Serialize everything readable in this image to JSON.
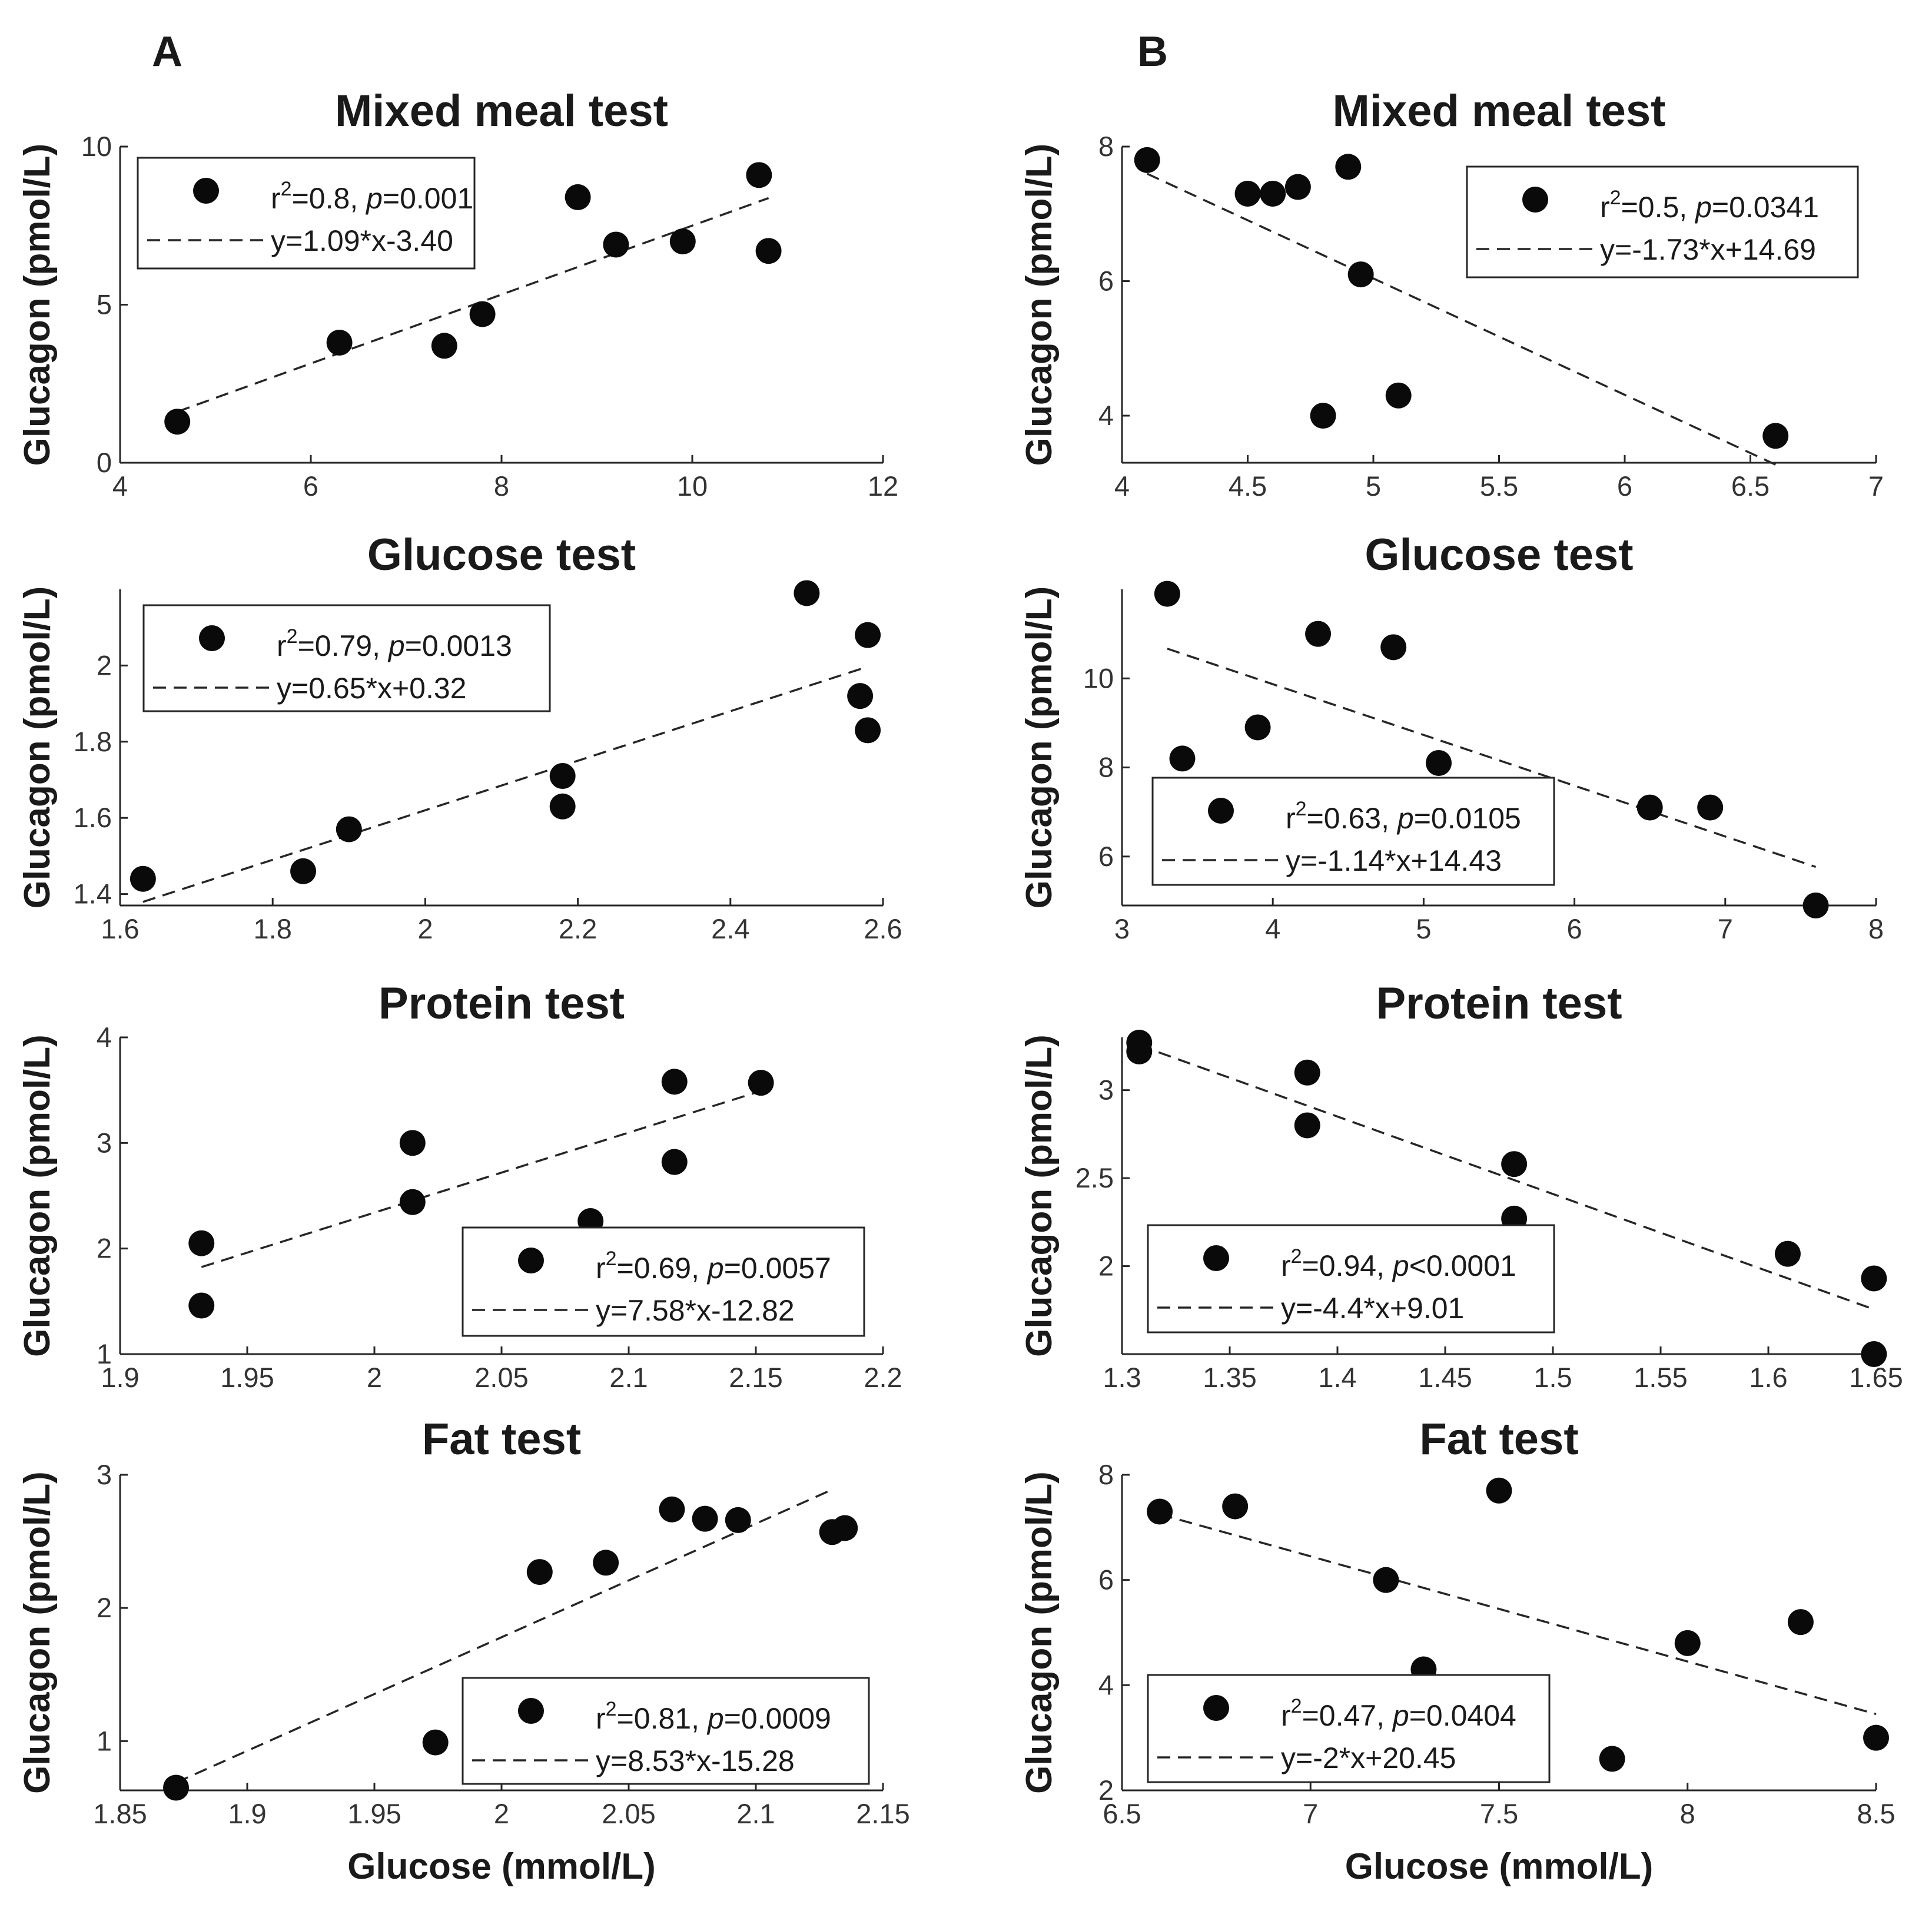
{
  "figure": {
    "panel_labels": [
      "A",
      "B"
    ],
    "x_axis_label": "Glucose (mmol/L)",
    "y_axis_label": "Glucagon (pmol/L)"
  },
  "chart_data": [
    {
      "id": "A1",
      "type": "scatter",
      "panel": "A",
      "title": "Mixed meal test",
      "xlabel": "",
      "ylabel": "Glucagon (pmol/L)",
      "xlim": [
        4,
        12
      ],
      "ylim": [
        0,
        10
      ],
      "xticks": [
        4,
        6,
        8,
        10,
        12
      ],
      "xtick_labels": [
        "4",
        "6",
        "8",
        "10",
        "12"
      ],
      "yticks": [
        0,
        5,
        10
      ],
      "ytick_labels": [
        "0",
        "5",
        "10"
      ],
      "points": [
        [
          4.6,
          1.3
        ],
        [
          6.3,
          3.8
        ],
        [
          7.4,
          3.7
        ],
        [
          7.8,
          4.7
        ],
        [
          8.8,
          8.4
        ],
        [
          9.2,
          6.9
        ],
        [
          9.9,
          7.0
        ],
        [
          10.7,
          9.1
        ],
        [
          10.8,
          6.7
        ]
      ],
      "fit": {
        "slope": 1.09,
        "intercept": -3.4,
        "x_range": [
          4.6,
          10.8
        ]
      },
      "legend": {
        "position": "top-left",
        "r2_prefix": "r",
        "r2_sup": "2",
        "r2_value": "=0.8, ",
        "p_prefix": "p",
        "p_value": "=0.001",
        "equation": "y=1.09*x-3.40"
      }
    },
    {
      "id": "A2",
      "type": "scatter",
      "panel": "A",
      "title": "Glucose test",
      "xlabel": "",
      "ylabel": "Glucagon (pmol/L)",
      "xlim": [
        1.6,
        2.6
      ],
      "ylim": [
        1.37,
        2.2
      ],
      "xticks": [
        1.6,
        1.8,
        2.0,
        2.2,
        2.4,
        2.6
      ],
      "xtick_labels": [
        "1.6",
        "1.8",
        "2",
        "2.2",
        "2.4",
        "2.6"
      ],
      "yticks": [
        1.4,
        1.6,
        1.8,
        2.0
      ],
      "ytick_labels": [
        "1.4",
        "1.6",
        "1.8",
        "2"
      ],
      "points": [
        [
          1.63,
          1.44
        ],
        [
          1.84,
          1.46
        ],
        [
          1.9,
          1.57
        ],
        [
          2.18,
          1.71
        ],
        [
          2.18,
          1.63
        ],
        [
          2.5,
          2.19
        ],
        [
          2.58,
          2.08
        ],
        [
          2.57,
          1.92
        ],
        [
          2.58,
          1.83
        ]
      ],
      "fit": {
        "slope": 0.65,
        "intercept": 0.32,
        "x_range": [
          1.63,
          2.58
        ]
      },
      "legend": {
        "position": "top-left",
        "r2_prefix": "r",
        "r2_sup": "2",
        "r2_value": "=0.79, ",
        "p_prefix": "p",
        "p_value": "=0.0013",
        "equation": "y=0.65*x+0.32"
      }
    },
    {
      "id": "A3",
      "type": "scatter",
      "panel": "A",
      "title": "Protein test",
      "xlabel": "",
      "ylabel": "Glucagon (pmol/L)",
      "xlim": [
        1.9,
        2.2
      ],
      "ylim": [
        1,
        4
      ],
      "xticks": [
        1.9,
        1.95,
        2.0,
        2.05,
        2.1,
        2.15,
        2.2
      ],
      "xtick_labels": [
        "1.9",
        "1.95",
        "2",
        "2.05",
        "2.1",
        "2.15",
        "2.2"
      ],
      "yticks": [
        1,
        2,
        3,
        4
      ],
      "ytick_labels": [
        "1",
        "2",
        "3",
        "4"
      ],
      "points": [
        [
          1.932,
          2.05
        ],
        [
          1.932,
          1.46
        ],
        [
          2.015,
          3.0
        ],
        [
          2.015,
          2.44
        ],
        [
          2.085,
          2.26
        ],
        [
          2.118,
          3.58
        ],
        [
          2.118,
          2.82
        ],
        [
          2.152,
          3.57
        ]
      ],
      "fit": {
        "slope": 7.58,
        "intercept": -12.82,
        "x_range": [
          1.932,
          2.152
        ]
      },
      "legend": {
        "position": "bottom-right",
        "r2_prefix": "r",
        "r2_sup": "2",
        "r2_value": "=0.69, ",
        "p_prefix": "p",
        "p_value": "=0.0057",
        "equation": "y=7.58*x-12.82"
      }
    },
    {
      "id": "A4",
      "type": "scatter",
      "panel": "A",
      "title": "Fat test",
      "xlabel": "Glucose (mmol/L)",
      "ylabel": "Glucagon (pmol/L)",
      "xlim": [
        1.85,
        2.15
      ],
      "ylim": [
        0.63,
        3
      ],
      "xticks": [
        1.85,
        1.9,
        1.95,
        2.0,
        2.05,
        2.1,
        2.15
      ],
      "xtick_labels": [
        "1.85",
        "1.9",
        "1.95",
        "2",
        "2.05",
        "2.1",
        "2.15"
      ],
      "yticks": [
        1,
        2,
        3
      ],
      "ytick_labels": [
        "1",
        "2",
        "3"
      ],
      "points": [
        [
          1.872,
          0.65
        ],
        [
          1.974,
          0.99
        ],
        [
          2.015,
          2.27
        ],
        [
          2.041,
          2.34
        ],
        [
          2.067,
          2.74
        ],
        [
          2.08,
          2.67
        ],
        [
          2.093,
          2.66
        ],
        [
          2.13,
          2.57
        ],
        [
          2.135,
          2.6
        ]
      ],
      "fit": {
        "slope": 8.53,
        "intercept": -15.28,
        "x_range": [
          1.872,
          2.13
        ]
      },
      "legend": {
        "position": "bottom-right",
        "r2_prefix": "r",
        "r2_sup": "2",
        "r2_value": "=0.81, ",
        "p_prefix": "p",
        "p_value": "=0.0009",
        "equation": "y=8.53*x-15.28"
      }
    },
    {
      "id": "B1",
      "type": "scatter",
      "panel": "B",
      "title": "Mixed meal test",
      "xlabel": "",
      "ylabel": "Glucagon (pmol/L)",
      "xlim": [
        4,
        7
      ],
      "ylim": [
        3.3,
        8
      ],
      "xticks": [
        4,
        4.5,
        5,
        5.5,
        6,
        6.5,
        7
      ],
      "xtick_labels": [
        "4",
        "4.5",
        "5",
        "5.5",
        "6",
        "6.5",
        "7"
      ],
      "yticks": [
        4,
        6,
        8
      ],
      "ytick_labels": [
        "4",
        "6",
        "8"
      ],
      "points": [
        [
          4.1,
          7.8
        ],
        [
          4.5,
          7.3
        ],
        [
          4.6,
          7.3
        ],
        [
          4.7,
          7.4
        ],
        [
          4.9,
          7.7
        ],
        [
          4.95,
          6.1
        ],
        [
          4.8,
          4.0
        ],
        [
          5.1,
          4.3
        ],
        [
          6.6,
          3.7
        ]
      ],
      "fit": {
        "slope": -1.73,
        "intercept": 14.69,
        "x_range": [
          4.1,
          6.6
        ]
      },
      "legend": {
        "position": "top-right",
        "r2_prefix": "r",
        "r2_sup": "2",
        "r2_value": "=0.5, ",
        "p_prefix": "p",
        "p_value": "=0.0341",
        "equation": "y=-1.73*x+14.69"
      }
    },
    {
      "id": "B2",
      "type": "scatter",
      "panel": "B",
      "title": "Glucose test",
      "xlabel": "",
      "ylabel": "Glucagon (pmol/L)",
      "xlim": [
        3,
        8
      ],
      "ylim": [
        4.9,
        12
      ],
      "xticks": [
        3,
        4,
        5,
        6,
        7,
        8
      ],
      "xtick_labels": [
        "3",
        "4",
        "5",
        "6",
        "7",
        "8"
      ],
      "yticks": [
        6,
        8,
        10
      ],
      "ytick_labels": [
        "6",
        "8",
        "10"
      ],
      "points": [
        [
          3.3,
          11.9
        ],
        [
          3.4,
          8.2
        ],
        [
          3.9,
          8.9
        ],
        [
          4.3,
          11.0
        ],
        [
          4.8,
          10.7
        ],
        [
          5.1,
          8.1
        ],
        [
          6.5,
          7.1
        ],
        [
          6.9,
          7.1
        ],
        [
          7.6,
          4.9
        ]
      ],
      "fit": {
        "slope": -1.14,
        "intercept": 14.43,
        "x_range": [
          3.3,
          7.6
        ]
      },
      "legend": {
        "position": "bottom-left",
        "r2_prefix": "r",
        "r2_sup": "2",
        "r2_value": "=0.63, ",
        "p_prefix": "p",
        "p_value": "=0.0105",
        "equation": "y=-1.14*x+14.43"
      }
    },
    {
      "id": "B3",
      "type": "scatter",
      "panel": "B",
      "title": "Protein test",
      "xlabel": "",
      "ylabel": "Glucagon (pmol/L)",
      "xlim": [
        1.3,
        1.65
      ],
      "ylim": [
        1.5,
        3.3
      ],
      "xticks": [
        1.3,
        1.35,
        1.4,
        1.45,
        1.5,
        1.55,
        1.6,
        1.65
      ],
      "xtick_labels": [
        "1.3",
        "1.35",
        "1.4",
        "1.45",
        "1.5",
        "1.55",
        "1.6",
        "1.65"
      ],
      "yticks": [
        2,
        2.5,
        3
      ],
      "ytick_labels": [
        "2",
        "2.5",
        "3"
      ],
      "points": [
        [
          1.308,
          3.27
        ],
        [
          1.308,
          3.22
        ],
        [
          1.386,
          3.1
        ],
        [
          1.386,
          2.8
        ],
        [
          1.482,
          2.58
        ],
        [
          1.482,
          2.27
        ],
        [
          1.609,
          2.07
        ],
        [
          1.649,
          1.93
        ],
        [
          1.649,
          1.5
        ]
      ],
      "fit": {
        "slope": -4.4,
        "intercept": 9.01,
        "x_range": [
          1.308,
          1.649
        ]
      },
      "legend": {
        "position": "bottom-left",
        "r2_prefix": "r",
        "r2_sup": "2",
        "r2_value": "=0.94, ",
        "p_prefix": "p",
        "p_value": "<0.0001",
        "equation": "y=-4.4*x+9.01"
      }
    },
    {
      "id": "B4",
      "type": "scatter",
      "panel": "B",
      "title": "Fat test",
      "xlabel": "Glucose (mmol/L)",
      "ylabel": "Glucagon (pmol/L)",
      "xlim": [
        6.5,
        8.5
      ],
      "ylim": [
        2,
        8
      ],
      "xticks": [
        6.5,
        7,
        7.5,
        8,
        8.5
      ],
      "xtick_labels": [
        "6.5",
        "7",
        "7.5",
        "8",
        "8.5"
      ],
      "yticks": [
        2,
        4,
        6,
        8
      ],
      "ytick_labels": [
        "2",
        "4",
        "6",
        "8"
      ],
      "points": [
        [
          6.6,
          7.3
        ],
        [
          6.8,
          7.4
        ],
        [
          7.5,
          7.7
        ],
        [
          7.2,
          6.0
        ],
        [
          7.3,
          4.3
        ],
        [
          7.8,
          2.6
        ],
        [
          8.0,
          4.8
        ],
        [
          8.3,
          5.2
        ],
        [
          8.5,
          3.0
        ]
      ],
      "fit": {
        "slope": -2,
        "intercept": 20.45,
        "x_range": [
          6.6,
          8.5
        ]
      },
      "legend": {
        "position": "bottom-left",
        "r2_prefix": "r",
        "r2_sup": "2",
        "r2_value": "=0.47, ",
        "p_prefix": "p",
        "p_value": "=0.0404",
        "equation": "y=-2*x+20.45"
      }
    }
  ]
}
